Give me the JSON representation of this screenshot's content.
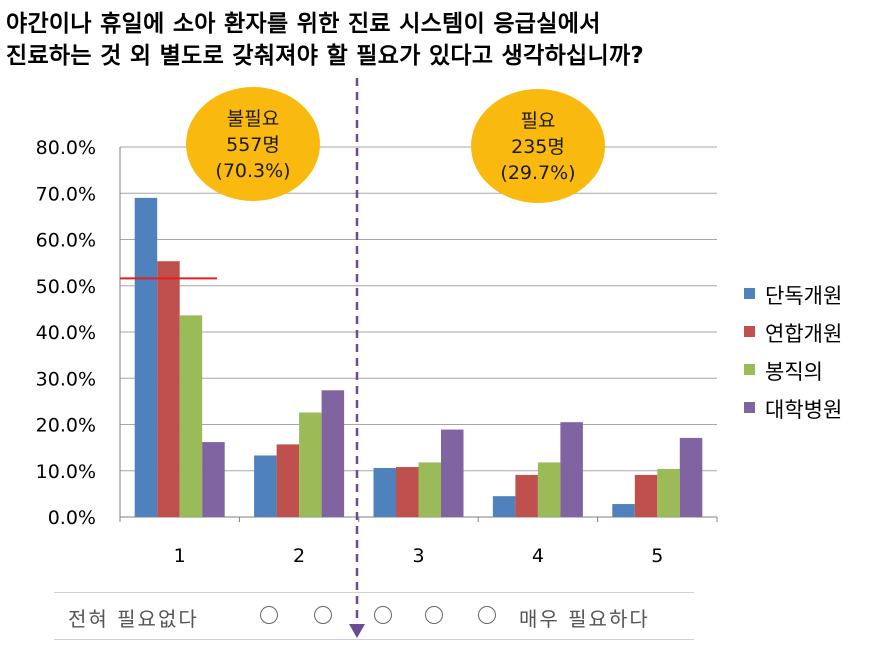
{
  "title": {
    "line1": "야간이나 휴일에 소아 환자를 위한 진료 시스템이 응급실에서",
    "line2": "진료하는 것 외 별도로 갖춰져야 할 필요가 있다고 생각하십니까?"
  },
  "annotations": {
    "unnecessary": {
      "label": "불필요",
      "count": "557명",
      "pct": "(70.3%)"
    },
    "necessary": {
      "label": "필요",
      "count": "235명",
      "pct": "(29.7%)"
    }
  },
  "scale": {
    "left_label": "전혀 필요없다",
    "right_label": "매우 필요하다",
    "options": 5
  },
  "colors": {
    "series": [
      "#4F81BD",
      "#C0504D",
      "#9BBB59",
      "#8064A2"
    ],
    "ellipse_fill": "#F9B90E",
    "divider": "#6A4C93",
    "reference_line": "#E02020",
    "grid": "#A6A6A6"
  },
  "chart_data": {
    "type": "bar",
    "categories": [
      "1",
      "2",
      "3",
      "4",
      "5"
    ],
    "series": [
      {
        "name": "단독개원",
        "values": [
          69.0,
          13.3,
          10.6,
          4.5,
          2.8
        ]
      },
      {
        "name": "연합개원",
        "values": [
          55.3,
          15.7,
          10.8,
          9.1,
          9.1
        ]
      },
      {
        "name": "봉직의",
        "values": [
          43.6,
          22.6,
          11.8,
          11.8,
          10.4
        ]
      },
      {
        "name": "대학병원",
        "values": [
          16.2,
          27.4,
          18.9,
          20.5,
          17.1
        ]
      }
    ],
    "ylim": [
      0,
      80
    ],
    "yticks": [
      "0.0%",
      "10.0%",
      "20.0%",
      "30.0%",
      "40.0%",
      "50.0%",
      "60.0%",
      "70.0%",
      "80.0%"
    ],
    "reference_value": 51.6,
    "grid": true,
    "legend_position": "right"
  }
}
